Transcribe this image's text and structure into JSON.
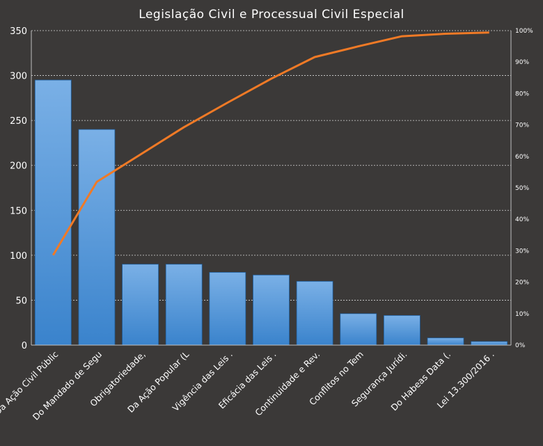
{
  "chart_data": {
    "type": "bar",
    "title": "Legislação  Civil  e  Processual  Civil  Especial",
    "categories": [
      "Da Ação Civil Públic",
      "Do Mandado de Segu",
      "Obrigatoriedade,",
      "Da Ação Popular (L",
      "Vigência das Leis .",
      "Eficácia das Leis .",
      "Continuidade e Rev.",
      "Conflitos no Tem",
      "Segurança Jurídi.",
      "Do Habeas Data (.",
      "Lei 13.300/2016 ."
    ],
    "series": [
      {
        "type": "bar",
        "values": [
          295,
          240,
          90,
          90,
          81,
          78,
          71,
          35,
          33,
          8,
          4
        ]
      },
      {
        "type": "line",
        "axis": "right",
        "values": [
          28.6,
          51.9,
          60.6,
          69.3,
          77.1,
          84.7,
          91.6,
          95.0,
          98.2,
          99.0,
          99.4
        ]
      }
    ],
    "ylim": [
      0,
      350
    ],
    "yticks": [
      0,
      50,
      100,
      150,
      200,
      250,
      300,
      350
    ],
    "y2lim": [
      0,
      100
    ],
    "y2ticks": [
      "0%",
      "10%",
      "20%",
      "30%",
      "40%",
      "50%",
      "60%",
      "70%",
      "80%",
      "90%",
      "100%"
    ],
    "grid": true,
    "colors": {
      "background": "#3b3938",
      "bar_top": "#7ab0e6",
      "bar_bottom": "#3a83cc",
      "line": "#f07a26",
      "text": "#ffffff"
    }
  }
}
